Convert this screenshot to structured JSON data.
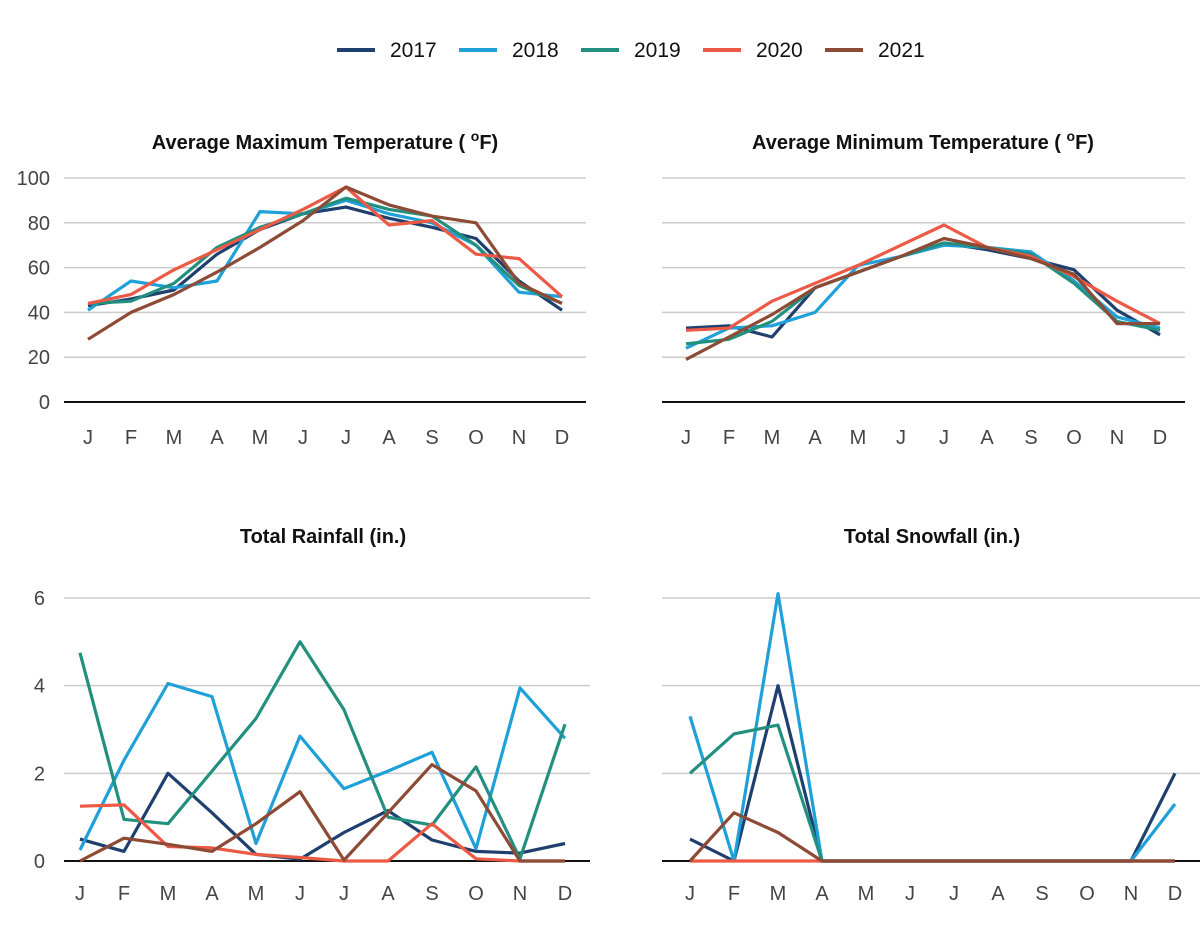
{
  "legend": {
    "position": "top-center",
    "items": [
      {
        "label": "2017",
        "color": "#1f3f6e"
      },
      {
        "label": "2018",
        "color": "#1fa0d8"
      },
      {
        "label": "2019",
        "color": "#23907f"
      },
      {
        "label": "2020",
        "color": "#ec5a45"
      },
      {
        "label": "2021",
        "color": "#8d4a35"
      }
    ]
  },
  "chart_data": [
    {
      "type": "line",
      "title": "Average Maximum Temperature ( ",
      "title_sup": "o",
      "title_end": "F)",
      "categories": [
        "J",
        "F",
        "M",
        "A",
        "M",
        "J",
        "J",
        "A",
        "S",
        "O",
        "N",
        "D"
      ],
      "yticks": [
        "0",
        "20",
        "40",
        "60",
        "80",
        "100"
      ],
      "ylim": [
        0,
        100
      ],
      "grid": true,
      "series": [
        {
          "name": "2017",
          "values": [
            43,
            46,
            50,
            66,
            77,
            84,
            87,
            82,
            78,
            73,
            54,
            41
          ]
        },
        {
          "name": "2018",
          "values": [
            41,
            54,
            51,
            54,
            85,
            84,
            90,
            84,
            80,
            70,
            49,
            47
          ]
        },
        {
          "name": "2019",
          "values": [
            44,
            45,
            53,
            69,
            78,
            84,
            91,
            86,
            83,
            70,
            52,
            44
          ]
        },
        {
          "name": "2020",
          "values": [
            44,
            48,
            59,
            68,
            77,
            86,
            96,
            79,
            81,
            66,
            64,
            47
          ]
        },
        {
          "name": "2021",
          "values": [
            28,
            40,
            48,
            58,
            69,
            81,
            96,
            88,
            83,
            80,
            53,
            44
          ]
        }
      ]
    },
    {
      "type": "line",
      "title": "Average Minimum Temperature ( ",
      "title_sup": "o",
      "title_end": "F)",
      "categories": [
        "J",
        "F",
        "M",
        "A",
        "M",
        "J",
        "J",
        "A",
        "S",
        "O",
        "N",
        "D"
      ],
      "yticks": [],
      "ylim": [
        0,
        100
      ],
      "grid": true,
      "series": [
        {
          "name": "2017",
          "values": [
            33,
            34,
            29,
            51,
            58,
            65,
            71,
            68,
            64,
            59,
            41,
            30
          ]
        },
        {
          "name": "2018",
          "values": [
            24,
            33,
            34,
            40,
            61,
            65,
            70,
            69,
            67,
            54,
            38,
            33
          ]
        },
        {
          "name": "2019",
          "values": [
            26,
            28,
            36,
            51,
            58,
            65,
            71,
            69,
            66,
            53,
            36,
            32
          ]
        },
        {
          "name": "2020",
          "values": [
            32,
            33,
            45,
            53,
            61,
            70,
            79,
            69,
            65,
            56,
            45,
            35
          ]
        },
        {
          "name": "2021",
          "values": [
            19,
            29,
            39,
            51,
            58,
            65,
            73,
            69,
            64,
            57,
            35,
            35
          ]
        }
      ]
    },
    {
      "type": "line",
      "title": "Total Rainfall (in.)",
      "title_sup": "",
      "title_end": "",
      "categories": [
        "J",
        "F",
        "M",
        "A",
        "M",
        "J",
        "J",
        "A",
        "S",
        "O",
        "N",
        "D"
      ],
      "yticks": [
        "0",
        "2",
        "4",
        "6"
      ],
      "ylim": [
        0,
        6.5
      ],
      "grid": true,
      "series": [
        {
          "name": "2017",
          "values": [
            0.5,
            0.22,
            2.0,
            1.1,
            0.15,
            0.04,
            0.65,
            1.15,
            0.48,
            0.22,
            0.18,
            0.4
          ]
        },
        {
          "name": "2018",
          "values": [
            0.25,
            2.3,
            4.05,
            3.75,
            0.4,
            2.85,
            1.65,
            2.05,
            2.48,
            0.28,
            3.95,
            2.8
          ]
        },
        {
          "name": "2019",
          "values": [
            4.75,
            0.95,
            0.85,
            2.05,
            3.25,
            5.0,
            3.45,
            1.0,
            0.82,
            2.15,
            0.05,
            3.12
          ]
        },
        {
          "name": "2020",
          "values": [
            1.25,
            1.28,
            0.33,
            0.3,
            0.15,
            0.08,
            0.0,
            0.0,
            0.85,
            0.05,
            0.0,
            0.0
          ]
        },
        {
          "name": "2021",
          "values": [
            0.0,
            0.52,
            0.38,
            0.22,
            0.85,
            1.58,
            0.02,
            1.1,
            2.2,
            1.6,
            0.0,
            0.0
          ]
        }
      ]
    },
    {
      "type": "line",
      "title": "Total Snowfall (in.)",
      "title_sup": "",
      "title_end": "",
      "categories": [
        "J",
        "F",
        "M",
        "A",
        "M",
        "J",
        "J",
        "A",
        "S",
        "O",
        "N",
        "D"
      ],
      "yticks": [],
      "ylim": [
        0,
        6.5
      ],
      "grid": true,
      "series": [
        {
          "name": "2017",
          "values": [
            0.5,
            0.0,
            4.0,
            0.0,
            0.0,
            0.0,
            0.0,
            0.0,
            0.0,
            0.0,
            0.0,
            2.0
          ]
        },
        {
          "name": "2018",
          "values": [
            3.3,
            0.0,
            6.1,
            0.0,
            0.0,
            0.0,
            0.0,
            0.0,
            0.0,
            0.0,
            0.0,
            1.3
          ]
        },
        {
          "name": "2019",
          "values": [
            2.0,
            2.9,
            3.1,
            0.0,
            0.0,
            0.0,
            0.0,
            0.0,
            0.0,
            0.0,
            0.0,
            0.0
          ]
        },
        {
          "name": "2020",
          "values": [
            0.0,
            0.0,
            0.0,
            0.0,
            0.0,
            0.0,
            0.0,
            0.0,
            0.0,
            0.0,
            0.0,
            0.0
          ]
        },
        {
          "name": "2021",
          "values": [
            0.0,
            1.1,
            0.65,
            0.0,
            0.0,
            0.0,
            0.0,
            0.0,
            0.0,
            0.0,
            0.0,
            0.0
          ]
        }
      ]
    }
  ]
}
